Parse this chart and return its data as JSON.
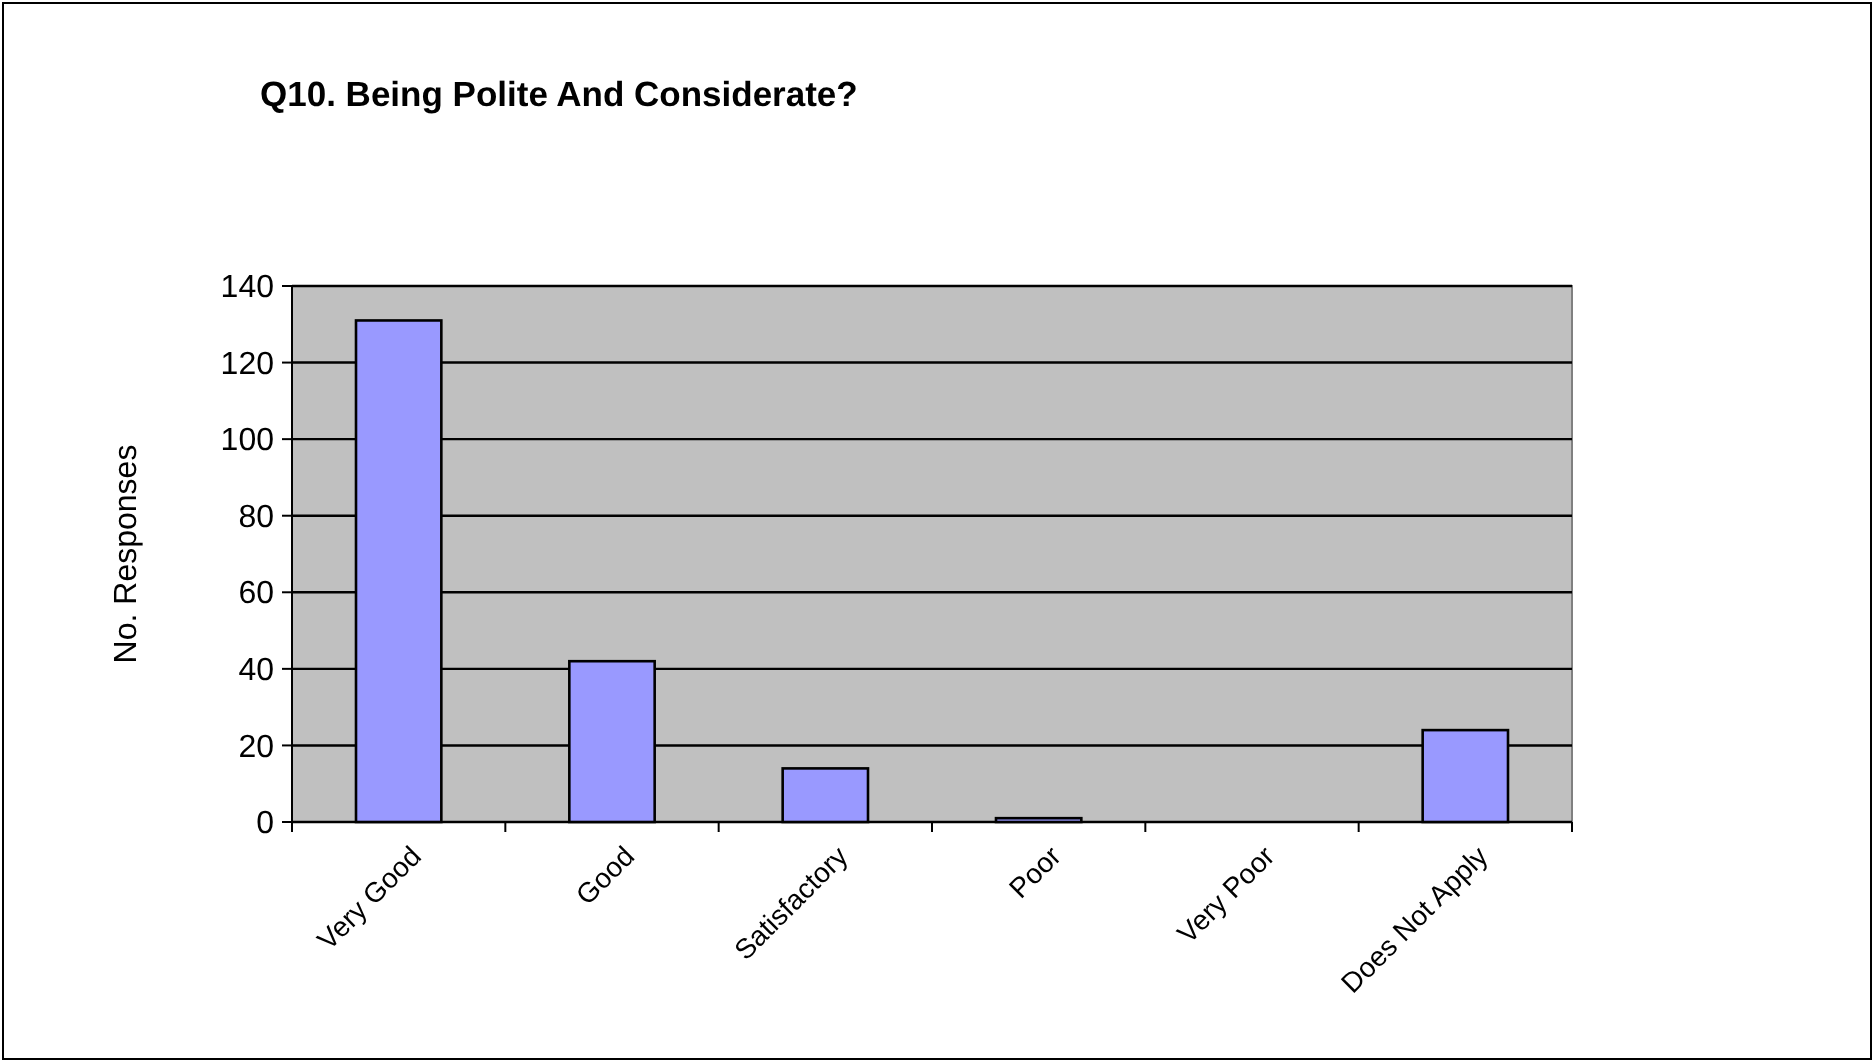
{
  "chart_data": {
    "type": "bar",
    "title": "Q10. Being Polite And Considerate?",
    "ylabel": "No. Responses",
    "categories": [
      "Very Good",
      "Good",
      "Satisfactory",
      "Poor",
      "Very Poor",
      "Does Not Apply"
    ],
    "values": [
      131,
      42,
      14,
      1,
      0,
      24
    ],
    "color": "#9999ff",
    "ylim": [
      0,
      140
    ],
    "yticks": [
      0,
      20,
      40,
      60,
      80,
      100,
      120,
      140
    ],
    "grid": "y"
  }
}
